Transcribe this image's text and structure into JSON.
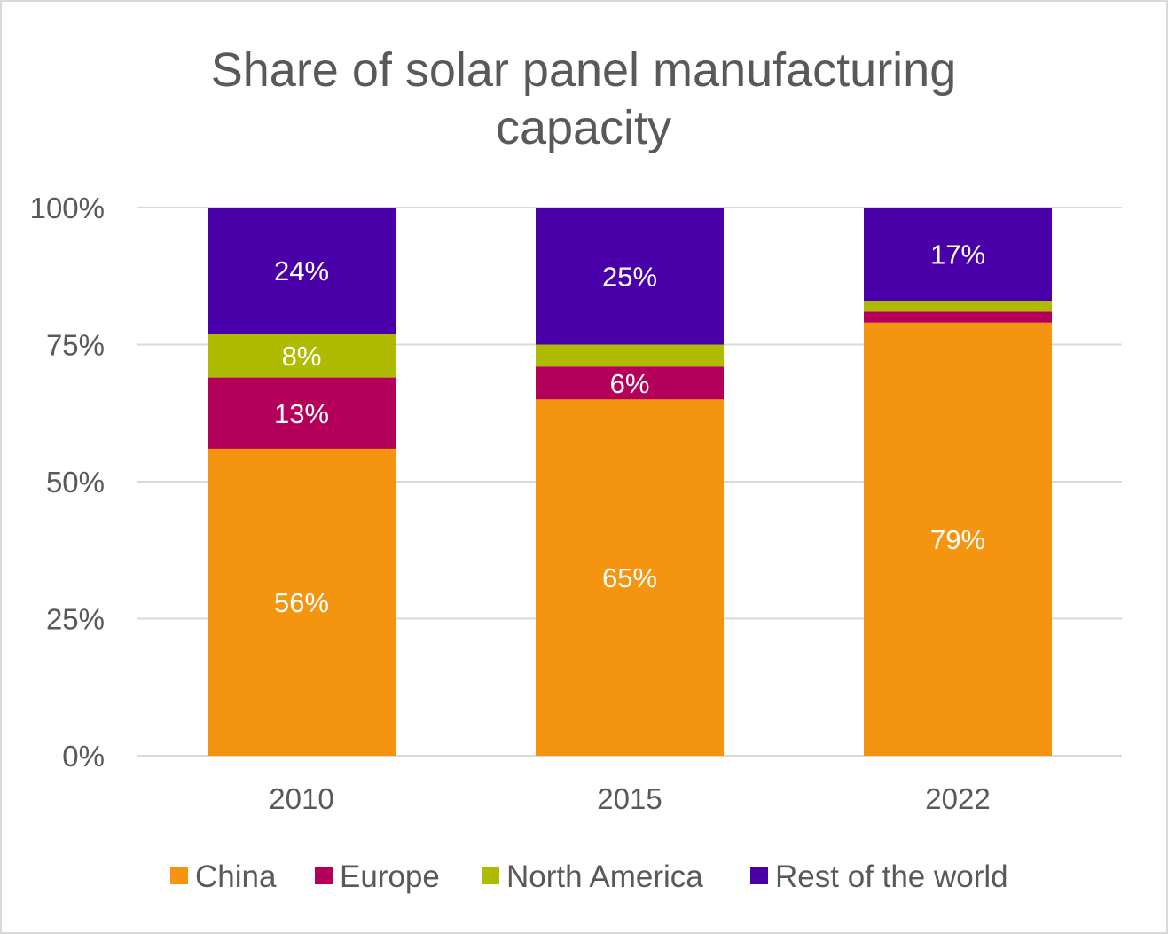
{
  "chart_data": {
    "type": "bar",
    "stacked": true,
    "title_lines": [
      "Share of solar panel manufacturing",
      "capacity"
    ],
    "categories": [
      "2010",
      "2015",
      "2022"
    ],
    "ylim": [
      0,
      100
    ],
    "yticks": [
      0,
      25,
      50,
      75,
      100
    ],
    "ytick_labels": [
      "0%",
      "25%",
      "50%",
      "75%",
      "100%"
    ],
    "grid": true,
    "legend_position": "bottom",
    "series": [
      {
        "name": "China",
        "color": "#F5950F",
        "values": [
          56,
          65,
          79
        ],
        "labels": [
          "56%",
          "65%",
          "79%"
        ]
      },
      {
        "name": "Europe",
        "color": "#B5005B",
        "values": [
          13,
          6,
          2
        ],
        "labels": [
          "13%",
          "6%",
          ""
        ]
      },
      {
        "name": "North America",
        "color": "#AEBB00",
        "values": [
          8,
          4,
          2
        ],
        "labels": [
          "8%",
          "",
          ""
        ]
      },
      {
        "name": "Rest of the world",
        "color": "#4A00A8",
        "values": [
          24,
          25,
          17
        ],
        "labels": [
          "24%",
          "25%",
          "17%"
        ]
      }
    ]
  }
}
